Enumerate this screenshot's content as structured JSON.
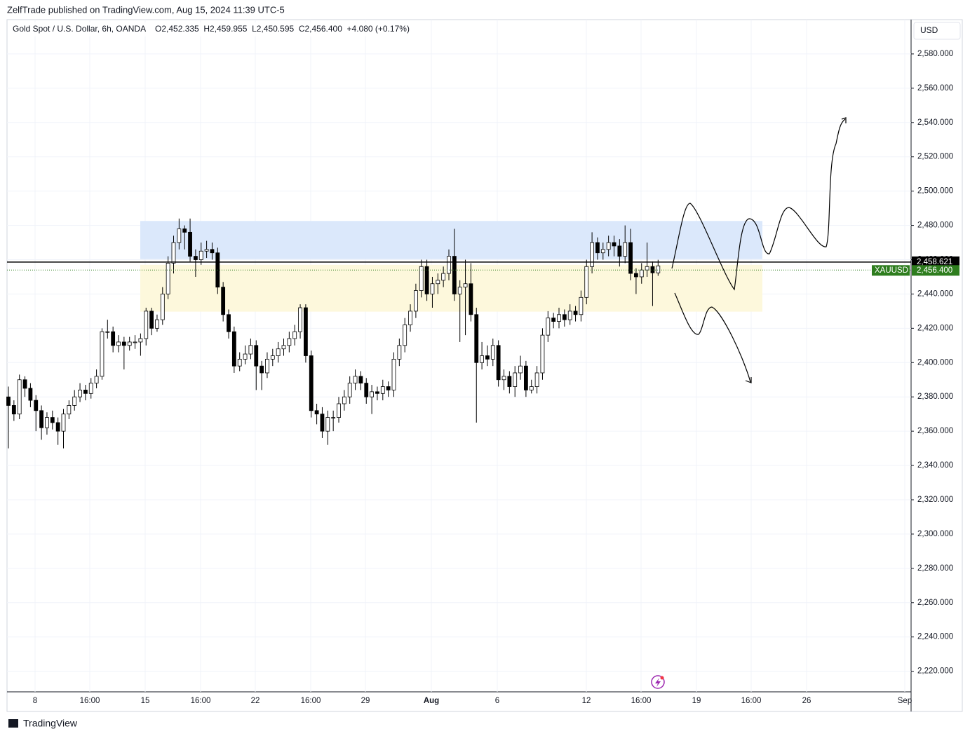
{
  "chart_data": {
    "type": "candlestick",
    "header": "ZelfTrade published on TradingView.com, Aug 15, 2024 11:39 UTC-5",
    "title": "Gold Spot / U.S. Dollar, 6h, OANDA",
    "ohlc_text": "O2,452.335  H2,459.955  L2,450.595  C2,456.400  +4.080 (+0.17%)",
    "currency": "USD",
    "footer": "TradingView",
    "symbol": "XAUUSD",
    "up_color": "#ffffff",
    "down_color": "#000000",
    "border_color": "#000000",
    "ylim": [
      2208,
      2600
    ],
    "yticks": [
      {
        "value": 2220,
        "label": "2,220.000"
      },
      {
        "value": 2240,
        "label": "2,240.000"
      },
      {
        "value": 2260,
        "label": "2,260.000"
      },
      {
        "value": 2280,
        "label": "2,280.000"
      },
      {
        "value": 2300,
        "label": "2,300.000"
      },
      {
        "value": 2320,
        "label": "2,320.000"
      },
      {
        "value": 2340,
        "label": "2,340.000"
      },
      {
        "value": 2360,
        "label": "2,360.000"
      },
      {
        "value": 2380,
        "label": "2,380.000"
      },
      {
        "value": 2400,
        "label": "2,400.000"
      },
      {
        "value": 2420,
        "label": "2,420.000"
      },
      {
        "value": 2440,
        "label": "2,440.000"
      },
      {
        "value": 2460,
        "label": "2,460.000"
      },
      {
        "value": 2480,
        "label": "2,480.000"
      },
      {
        "value": 2500,
        "label": "2,500.000"
      },
      {
        "value": 2520,
        "label": "2,520.000"
      },
      {
        "value": 2540,
        "label": "2,540.000"
      },
      {
        "value": 2560,
        "label": "2,560.000"
      },
      {
        "value": 2580,
        "label": "2,580.000"
      }
    ],
    "xlabels": [
      "8",
      "16:00",
      "15",
      "16:00",
      "22",
      "16:00",
      "29",
      "Aug",
      "6",
      "12",
      "16:00",
      "19",
      "16:00",
      "26",
      "Sep"
    ],
    "grid": true,
    "zones": [
      {
        "from": 2460.3,
        "to": 2482.6,
        "color": "#dbe8fb"
      },
      {
        "from": 2429.7,
        "to": 2457,
        "color": "#fdf8dc"
      }
    ],
    "hline": {
      "value": 2458.621,
      "label": "2,458.621",
      "color": "#000000"
    },
    "last_price": {
      "value": 2456.4,
      "label": "2,456.400",
      "color": "#2e7d1e"
    },
    "series": [
      {
        "name": "XAUUSD",
        "open": [
          2380,
          2375,
          2370,
          2390,
          2385,
          2378,
          2372,
          2362,
          2368,
          2365,
          2360,
          2370,
          2375,
          2380,
          2384,
          2382,
          2388,
          2392,
          2418,
          2418,
          2410,
          2412,
          2410,
          2412,
          2412,
          2414,
          2430,
          2420,
          2425,
          2440,
          2458,
          2470,
          2478,
          2476,
          2462,
          2460,
          2465,
          2466,
          2464,
          2444,
          2428,
          2418,
          2398,
          2402,
          2405,
          2410,
          2398,
          2394,
          2402,
          2404,
          2408,
          2410,
          2414,
          2418,
          2432,
          2404,
          2372,
          2370,
          2360,
          2368,
          2368,
          2376,
          2380,
          2388,
          2392,
          2388,
          2380,
          2383,
          2382,
          2386,
          2384,
          2402,
          2410,
          2422,
          2430,
          2442,
          2456,
          2440,
          2446,
          2448,
          2452,
          2462,
          2440,
          2444,
          2446,
          2428,
          2400,
          2404,
          2402,
          2410,
          2390,
          2392,
          2386,
          2394,
          2398,
          2384,
          2386,
          2394,
          2416,
          2426,
          2424,
          2428,
          2425,
          2430,
          2428,
          2438,
          2456,
          2470,
          2464,
          2466,
          2470,
          2468,
          2462,
          2470,
          2452,
          2450,
          2454,
          2456,
          2452.335
        ],
        "high": [
          2386,
          2378,
          2393,
          2392,
          2388,
          2381,
          2375,
          2371,
          2372,
          2368,
          2373,
          2378,
          2384,
          2388,
          2387,
          2391,
          2396,
          2420,
          2425,
          2421,
          2416,
          2415,
          2415,
          2416,
          2417,
          2432,
          2432,
          2428,
          2444,
          2462,
          2474,
          2484,
          2480,
          2484,
          2466,
          2470,
          2471,
          2470,
          2467,
          2447,
          2431,
          2421,
          2406,
          2410,
          2414,
          2413,
          2401,
          2406,
          2408,
          2412,
          2414,
          2418,
          2422,
          2434,
          2434,
          2407,
          2376,
          2374,
          2372,
          2372,
          2380,
          2384,
          2392,
          2396,
          2395,
          2391,
          2387,
          2386,
          2390,
          2389,
          2406,
          2414,
          2426,
          2434,
          2446,
          2460,
          2460,
          2450,
          2452,
          2456,
          2466,
          2478,
          2448,
          2460,
          2458,
          2432,
          2412,
          2410,
          2414,
          2413,
          2396,
          2395,
          2398,
          2404,
          2401,
          2390,
          2398,
          2420,
          2430,
          2429,
          2432,
          2431,
          2434,
          2433,
          2442,
          2460,
          2476,
          2473,
          2470,
          2474,
          2474,
          2472,
          2480,
          2478,
          2455,
          2458,
          2470,
          2459,
          2459.955
        ],
        "low": [
          2350,
          2366,
          2367,
          2380,
          2374,
          2360,
          2355,
          2358,
          2361,
          2352,
          2350,
          2367,
          2372,
          2377,
          2378,
          2379,
          2385,
          2390,
          2414,
          2406,
          2406,
          2396,
          2407,
          2408,
          2404,
          2410,
          2416,
          2418,
          2422,
          2437,
          2452,
          2466,
          2466,
          2459,
          2450,
          2457,
          2461,
          2460,
          2440,
          2424,
          2414,
          2394,
          2395,
          2399,
          2402,
          2384,
          2384,
          2391,
          2398,
          2400,
          2404,
          2406,
          2410,
          2414,
          2400,
          2368,
          2364,
          2356,
          2352,
          2360,
          2365,
          2372,
          2376,
          2384,
          2384,
          2376,
          2370,
          2378,
          2378,
          2380,
          2380,
          2398,
          2406,
          2418,
          2426,
          2438,
          2436,
          2432,
          2440,
          2444,
          2448,
          2436,
          2412,
          2416,
          2424,
          2365,
          2396,
          2398,
          2398,
          2386,
          2384,
          2382,
          2380,
          2390,
          2380,
          2382,
          2382,
          2390,
          2412,
          2420,
          2420,
          2421,
          2422,
          2424,
          2424,
          2434,
          2452,
          2460,
          2460,
          2462,
          2462,
          2456,
          2458,
          2448,
          2440,
          2446,
          2450,
          2433,
          2450.595
        ],
        "close": [
          2375,
          2370,
          2390,
          2385,
          2378,
          2372,
          2362,
          2368,
          2365,
          2360,
          2370,
          2375,
          2380,
          2384,
          2382,
          2388,
          2392,
          2418,
          2418,
          2410,
          2412,
          2410,
          2412,
          2412,
          2414,
          2430,
          2420,
          2425,
          2440,
          2458,
          2470,
          2478,
          2476,
          2462,
          2460,
          2465,
          2466,
          2464,
          2444,
          2428,
          2418,
          2398,
          2402,
          2405,
          2410,
          2398,
          2394,
          2402,
          2404,
          2408,
          2410,
          2414,
          2418,
          2432,
          2404,
          2372,
          2370,
          2360,
          2368,
          2368,
          2376,
          2380,
          2388,
          2392,
          2388,
          2380,
          2383,
          2382,
          2386,
          2384,
          2402,
          2410,
          2422,
          2430,
          2442,
          2456,
          2440,
          2446,
          2448,
          2452,
          2462,
          2440,
          2444,
          2446,
          2428,
          2400,
          2404,
          2402,
          2410,
          2390,
          2392,
          2386,
          2394,
          2398,
          2384,
          2386,
          2394,
          2416,
          2426,
          2424,
          2428,
          2425,
          2430,
          2428,
          2438,
          2456,
          2470,
          2464,
          2466,
          2470,
          2468,
          2462,
          2470,
          2452,
          2450,
          2454,
          2456,
          2452.335,
          2456.4
        ]
      }
    ]
  }
}
